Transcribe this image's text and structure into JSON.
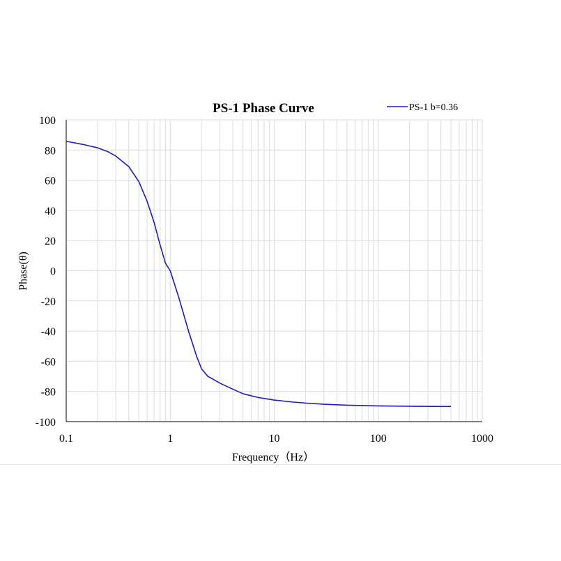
{
  "chart_data": {
    "type": "line",
    "title": "PS-1 Phase Curve",
    "xlabel": "Frequency（Hz）",
    "ylabel": "Phase(θ)",
    "x_scale": "log",
    "xlim": [
      0.1,
      1000
    ],
    "ylim": [
      -100,
      100
    ],
    "x_ticks": [
      0.1,
      1,
      10,
      100,
      1000
    ],
    "x_tick_labels": [
      "0.1",
      "1",
      "10",
      "100",
      "1000"
    ],
    "y_ticks": [
      100,
      80,
      60,
      40,
      20,
      0,
      -20,
      -40,
      -60,
      -80,
      -100
    ],
    "y_tick_labels": [
      "100",
      "80",
      "60",
      "40",
      "20",
      "0",
      "-20",
      "-40",
      "-60",
      "-80",
      "-100"
    ],
    "grid": true,
    "legend_position": "top-right",
    "series": [
      {
        "name": "PS-1 b=0.36",
        "color": "#1a1ac8",
        "x": [
          0.1,
          0.15,
          0.2,
          0.25,
          0.3,
          0.4,
          0.5,
          0.6,
          0.7,
          0.8,
          0.9,
          1.0,
          1.2,
          1.5,
          1.8,
          2.0,
          2.3,
          2.6,
          3.0,
          4.0,
          5.0,
          7.0,
          10,
          15,
          20,
          30,
          50,
          100,
          200,
          500
        ],
        "y": [
          85.8,
          83.5,
          81.5,
          79,
          76,
          69,
          59,
          46,
          32,
          17,
          5,
          0,
          -17,
          -40,
          -57,
          -65,
          -70,
          -72,
          -74.5,
          -78.5,
          -81.5,
          -84,
          -85.7,
          -87,
          -87.7,
          -88.5,
          -89.1,
          -89.6,
          -89.8,
          -90
        ]
      }
    ]
  },
  "colors": {
    "line": "#1a1ac8",
    "grid": "#dcdcdc",
    "axis": "#000000"
  }
}
